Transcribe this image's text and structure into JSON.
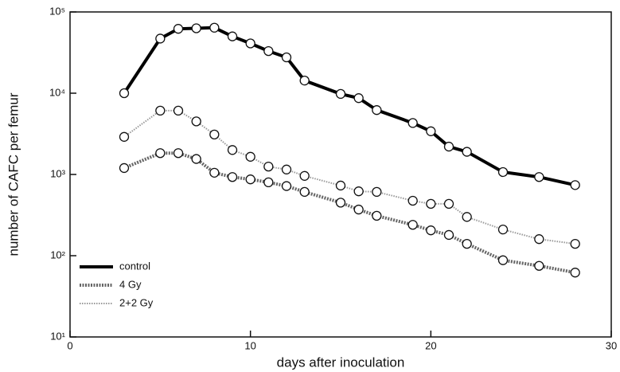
{
  "chart_data": {
    "type": "line",
    "x_label": "days after inoculation",
    "y_label": "number of CAFC per femur",
    "x": [
      3,
      5,
      6,
      7,
      8,
      9,
      10,
      11,
      12,
      13,
      15,
      16,
      17,
      19,
      20,
      21,
      22,
      24,
      26,
      28
    ],
    "series": [
      {
        "name": "control",
        "color": "#000000",
        "values": [
          10000,
          47000,
          62000,
          63000,
          64000,
          50000,
          41000,
          33000,
          27600,
          14300,
          9800,
          8700,
          6200,
          4300,
          3400,
          2200,
          1900,
          1070,
          930,
          740
        ]
      },
      {
        "name": "4 Gy",
        "color": "#666666",
        "values": [
          1200,
          1830,
          1830,
          1550,
          1050,
          930,
          870,
          800,
          720,
          610,
          450,
          370,
          310,
          240,
          205,
          180,
          140,
          88,
          75,
          62
        ]
      },
      {
        "name": "2+2 Gy",
        "color": "#999999",
        "values": [
          2900,
          6100,
          6100,
          4500,
          3100,
          2000,
          1650,
          1250,
          1150,
          960,
          730,
          620,
          610,
          475,
          435,
          435,
          300,
          210,
          160,
          140
        ]
      }
    ],
    "xlim": [
      0,
      30
    ],
    "xticks": [
      0,
      10,
      20,
      30
    ],
    "ylim": [
      10,
      100000
    ],
    "log_y": true,
    "yticks": [
      {
        "value": 10,
        "label": "10¹"
      },
      {
        "value": 100,
        "label": "10²"
      },
      {
        "value": 1000,
        "label": "10³"
      },
      {
        "value": 10000,
        "label": "10⁴"
      },
      {
        "value": 100000,
        "label": "10⁵"
      }
    ],
    "legend": "lower left"
  }
}
